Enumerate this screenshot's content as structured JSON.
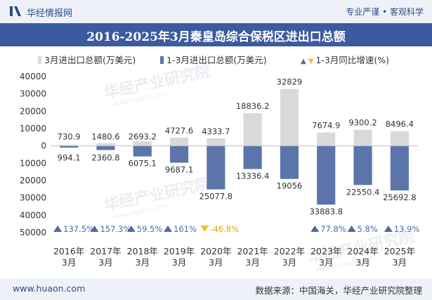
{
  "header": {
    "brand": "华经情报网",
    "tagline": "专业严谨 • 客观科学"
  },
  "title": "2016-2025年3月秦皇岛综合保税区进出口总额",
  "legend": {
    "bar1": "3月进出口总额(万美元)",
    "bar2": "1-3月进出口总额(万美元)",
    "line": "1-3月同比增速(%)"
  },
  "watermark": "华经产业研究院",
  "watermark_url": "www.huaon.com",
  "footer": {
    "site": "www.huaon.com",
    "source": "数据来源：中国海关，华经产业研究院整理"
  },
  "colors": {
    "march_bar": "#d9d9d9",
    "ytd_bar": "#5b75ab",
    "up_marker": "#4a6aa3",
    "down_marker": "#f2c12e",
    "header_bg": "#3b5aa0"
  },
  "chart_data": {
    "type": "bar",
    "categories": [
      "2016年\n3月",
      "2017年\n3月",
      "2018年\n3月",
      "2019年\n3月",
      "2020年\n3月",
      "2021年\n3月",
      "2022年\n3月",
      "2023年\n3月",
      "2024年\n3月",
      "2025年\n3月"
    ],
    "ylim": [
      -50000,
      40000
    ],
    "yticks": [
      40000,
      30000,
      20000,
      10000,
      0,
      -10000,
      -20000,
      -30000,
      -40000,
      -50000
    ],
    "ytick_labels": [
      "40000",
      "30000",
      "20000",
      "10000",
      "0",
      "10000",
      "20000",
      "30000",
      "40000",
      "50000"
    ],
    "series": [
      {
        "name": "3月进出口总额(万美元)",
        "values": [
          730.9,
          1480.6,
          2693.2,
          4727.6,
          4333.7,
          18836.2,
          32829,
          7674.9,
          9300.2,
          8496.4
        ],
        "labels": [
          "730.9",
          "1480.6",
          "2693.2",
          "4727.6",
          "4333.7",
          "18836.2",
          "32829",
          "7674.9",
          "9300.2",
          "8496.4"
        ],
        "direction": "up"
      },
      {
        "name": "1-3月进出口总额(万美元)",
        "values": [
          994.1,
          2360.8,
          6075.1,
          9687.1,
          25077.8,
          13336.4,
          19056,
          33883.8,
          22550.4,
          25692.8
        ],
        "labels": [
          "994.1",
          "2360.8",
          "6075.1",
          "9687.1",
          "25077.8",
          "13336.4",
          "19056",
          "33883.8",
          "22550.4",
          "25692.8"
        ],
        "direction": "down"
      },
      {
        "name": "1-3月同比增速(%)",
        "values": [
          137.5,
          157.3,
          59.5,
          161,
          -46.8,
          null,
          null,
          77.8,
          5.8,
          13.9
        ],
        "labels": [
          "137.5%",
          "157.3%",
          "59.5%",
          "161%",
          "-46.8%",
          "",
          "",
          "77.8%",
          "5.8%",
          "13.9%"
        ]
      }
    ]
  }
}
